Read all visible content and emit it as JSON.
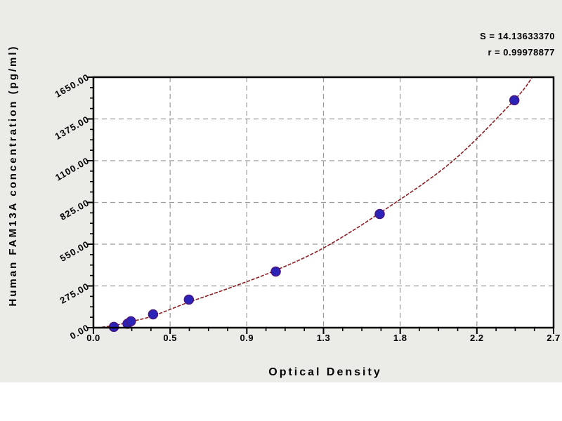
{
  "annotation": {
    "s_value": "S = 14.13633370",
    "r_value": "r = 0.99978877"
  },
  "chart_data": {
    "type": "scatter",
    "title": "",
    "xlabel": "Optical Density",
    "ylabel": "Human FAM13A concentration (pg/ml)",
    "xlim": [
      0,
      2.7
    ],
    "ylim": [
      0,
      1650
    ],
    "x_ticks": [
      0,
      0.45,
      0.9,
      1.35,
      1.8,
      2.25,
      2.7
    ],
    "x_tick_labels": [
      "0.0",
      "0.5",
      "0.9",
      "1.3",
      "1.8",
      "2.2",
      "2.7"
    ],
    "y_ticks": [
      0,
      275,
      550,
      825,
      1100,
      1375,
      1650
    ],
    "y_tick_labels": [
      "0.00",
      "275.00",
      "550.00",
      "825.00",
      "1100.00",
      "1375.00",
      "1650.00"
    ],
    "minor_ticks_per_interval": 3,
    "grid": "dashed-major",
    "legend": "none",
    "series": [
      {
        "name": "standard-points",
        "points": [
          {
            "x": 0.12,
            "y": 5
          },
          {
            "x": 0.2,
            "y": 26
          },
          {
            "x": 0.22,
            "y": 42
          },
          {
            "x": 0.35,
            "y": 88
          },
          {
            "x": 0.56,
            "y": 185
          },
          {
            "x": 1.07,
            "y": 370
          },
          {
            "x": 1.68,
            "y": 749
          },
          {
            "x": 2.47,
            "y": 1498
          }
        ]
      }
    ],
    "fit_curve": [
      {
        "x": 0.02,
        "y": 0
      },
      {
        "x": 0.12,
        "y": 14
      },
      {
        "x": 0.22,
        "y": 40
      },
      {
        "x": 0.35,
        "y": 78
      },
      {
        "x": 0.56,
        "y": 168
      },
      {
        "x": 0.8,
        "y": 262
      },
      {
        "x": 1.07,
        "y": 378
      },
      {
        "x": 1.35,
        "y": 525
      },
      {
        "x": 1.68,
        "y": 755
      },
      {
        "x": 2.1,
        "y": 1090
      },
      {
        "x": 2.47,
        "y": 1500
      },
      {
        "x": 2.575,
        "y": 1650
      }
    ],
    "colors": {
      "curve": "#8b2025",
      "marker": "#2b22b8",
      "marker_edge": "#471880",
      "grid": "#999999",
      "frame": "#000000",
      "axis_text": "#000000",
      "plot_bg": "#ffffff",
      "canvas_bg": "#ebebe8"
    }
  }
}
